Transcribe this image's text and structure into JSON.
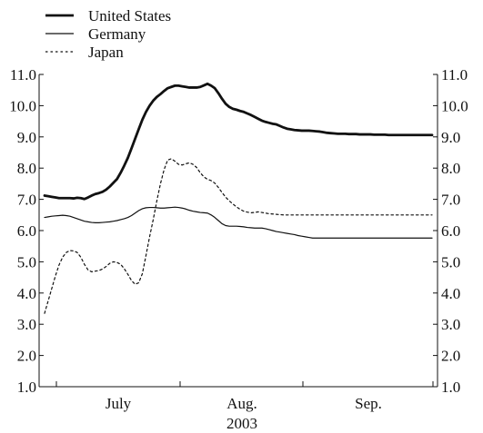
{
  "chart_data": {
    "type": "line",
    "title": "",
    "xlabel": "",
    "ylabel": "",
    "ylim": [
      1.0,
      11.0
    ],
    "yticks": [
      "1.0",
      "2.0",
      "3.0",
      "4.0",
      "5.0",
      "6.0",
      "7.0",
      "8.0",
      "9.0",
      "10.0",
      "11.0"
    ],
    "x_labels": [
      "July",
      "Aug.",
      "Sep."
    ],
    "year_label": "2003",
    "grid": false,
    "legend_position": "top-left",
    "x": [
      0,
      4,
      8,
      12,
      16,
      20,
      24,
      28,
      32,
      36,
      40,
      44,
      48,
      52,
      56,
      60,
      64,
      68,
      72,
      76,
      80,
      84,
      88,
      92,
      96,
      100,
      104,
      108,
      112,
      116,
      120,
      124,
      128,
      132,
      136,
      140,
      144,
      148,
      152,
      156,
      160,
      164,
      168,
      172,
      176,
      180,
      184,
      188,
      192,
      196,
      200,
      204,
      208,
      212,
      216,
      220,
      224,
      228,
      232,
      236,
      240,
      244,
      248,
      252,
      256,
      260,
      264,
      268,
      272,
      276,
      280,
      284,
      288,
      292,
      296,
      300,
      304,
      308,
      312,
      316,
      320,
      324,
      328,
      332,
      336,
      340,
      344,
      348,
      352,
      356,
      360,
      364,
      368,
      372,
      376,
      380,
      384,
      388,
      392,
      396,
      400,
      404,
      408,
      412,
      416,
      420,
      424,
      428
    ],
    "series": [
      {
        "name": "United States",
        "style": "thick-solid",
        "color": "#111111",
        "values": [
          7.12,
          7.1,
          7.08,
          7.06,
          7.04,
          7.04,
          7.04,
          7.04,
          7.03,
          7.05,
          7.04,
          7.01,
          7.06,
          7.12,
          7.17,
          7.2,
          7.24,
          7.31,
          7.41,
          7.53,
          7.65,
          7.85,
          8.08,
          8.33,
          8.63,
          8.94,
          9.25,
          9.55,
          9.8,
          10.0,
          10.16,
          10.28,
          10.37,
          10.47,
          10.56,
          10.6,
          10.64,
          10.64,
          10.62,
          10.6,
          10.58,
          10.58,
          10.58,
          10.6,
          10.65,
          10.7,
          10.64,
          10.56,
          10.4,
          10.22,
          10.06,
          9.96,
          9.9,
          9.87,
          9.83,
          9.8,
          9.75,
          9.7,
          9.64,
          9.58,
          9.52,
          9.48,
          9.45,
          9.42,
          9.4,
          9.35,
          9.3,
          9.26,
          9.24,
          9.22,
          9.21,
          9.2,
          9.2,
          9.2,
          9.19,
          9.18,
          9.17,
          9.15,
          9.13,
          9.12,
          9.11,
          9.1,
          9.1,
          9.1,
          9.09,
          9.09,
          9.09,
          9.08,
          9.08,
          9.08,
          9.08,
          9.07,
          9.07,
          9.07,
          9.07,
          9.06,
          9.06,
          9.06,
          9.06,
          9.06,
          9.06,
          9.06,
          9.06,
          9.06,
          9.06,
          9.06,
          9.06,
          9.06
        ]
      },
      {
        "name": "Germany",
        "style": "thin-solid",
        "color": "#111111",
        "values": [
          6.42,
          6.44,
          6.46,
          6.47,
          6.48,
          6.49,
          6.48,
          6.46,
          6.42,
          6.38,
          6.34,
          6.3,
          6.28,
          6.26,
          6.25,
          6.25,
          6.26,
          6.27,
          6.28,
          6.3,
          6.32,
          6.35,
          6.38,
          6.42,
          6.48,
          6.56,
          6.64,
          6.7,
          6.73,
          6.74,
          6.74,
          6.73,
          6.72,
          6.72,
          6.73,
          6.74,
          6.75,
          6.74,
          6.72,
          6.69,
          6.65,
          6.62,
          6.6,
          6.58,
          6.57,
          6.56,
          6.5,
          6.42,
          6.32,
          6.22,
          6.16,
          6.14,
          6.14,
          6.14,
          6.13,
          6.12,
          6.1,
          6.09,
          6.08,
          6.08,
          6.08,
          6.06,
          6.03,
          6.0,
          5.97,
          5.95,
          5.93,
          5.91,
          5.89,
          5.87,
          5.84,
          5.82,
          5.8,
          5.78,
          5.76,
          5.76,
          5.76,
          5.76,
          5.76,
          5.76,
          5.76,
          5.76,
          5.76,
          5.76,
          5.76,
          5.76,
          5.76,
          5.76,
          5.76,
          5.76,
          5.76,
          5.76,
          5.76,
          5.76,
          5.76,
          5.76,
          5.76,
          5.76,
          5.76,
          5.76,
          5.76,
          5.76,
          5.76,
          5.76,
          5.76,
          5.76,
          5.76,
          5.76
        ]
      },
      {
        "name": "Japan",
        "style": "dotted",
        "color": "#111111",
        "values": [
          3.35,
          3.75,
          4.15,
          4.55,
          4.9,
          5.15,
          5.3,
          5.36,
          5.35,
          5.3,
          5.15,
          4.92,
          4.74,
          4.68,
          4.7,
          4.72,
          4.77,
          4.85,
          4.95,
          5.0,
          4.98,
          4.92,
          4.78,
          4.6,
          4.4,
          4.28,
          4.33,
          4.62,
          5.2,
          5.8,
          6.35,
          6.95,
          7.5,
          7.95,
          8.26,
          8.3,
          8.22,
          8.12,
          8.1,
          8.14,
          8.17,
          8.12,
          8.02,
          7.85,
          7.72,
          7.64,
          7.6,
          7.52,
          7.38,
          7.22,
          7.07,
          6.95,
          6.85,
          6.76,
          6.68,
          6.62,
          6.59,
          6.57,
          6.58,
          6.6,
          6.58,
          6.56,
          6.54,
          6.53,
          6.52,
          6.51,
          6.5,
          6.5,
          6.5,
          6.5,
          6.5,
          6.5,
          6.5,
          6.5,
          6.5,
          6.5,
          6.5,
          6.5,
          6.5,
          6.5,
          6.5,
          6.5,
          6.5,
          6.5,
          6.5,
          6.5,
          6.5,
          6.5,
          6.5,
          6.5,
          6.5,
          6.5,
          6.5,
          6.5,
          6.5,
          6.5,
          6.5,
          6.5,
          6.5,
          6.5,
          6.5,
          6.5,
          6.5,
          6.5,
          6.5,
          6.5,
          6.5,
          6.5
        ]
      }
    ]
  }
}
